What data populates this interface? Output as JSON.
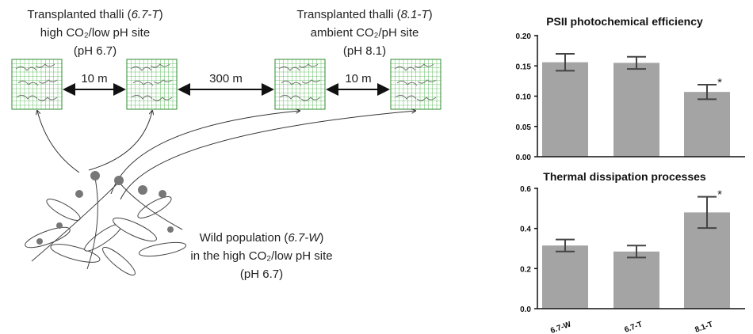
{
  "diagram": {
    "sites": [
      {
        "lines": [
          [
            "Transplanted thalli (",
            "6.7-T",
            ")"
          ],
          [
            "high CO₂/low pH site"
          ],
          [
            "(pH 6.7)"
          ]
        ]
      },
      {
        "lines": [
          [
            "Transplanted thalli (",
            "8.1-T",
            ")"
          ],
          [
            "ambient CO₂/pH site"
          ],
          [
            "(pH 8.1)"
          ]
        ]
      }
    ],
    "distances": [
      "10 m",
      "300 m",
      "10 m"
    ],
    "wild": {
      "lines": [
        [
          "Wild population (",
          "6.7-W",
          ")"
        ],
        [
          "in the high CO₂/low pH site"
        ],
        [
          "(pH 6.7)"
        ]
      ]
    }
  },
  "chart_data": [
    {
      "type": "bar",
      "title": "PSII photochemical efficiency",
      "categories": [
        null,
        null,
        null
      ],
      "values": [
        0.156,
        0.155,
        0.107
      ],
      "errors": [
        0.014,
        0.01,
        0.012
      ],
      "color": "#a4a4a4",
      "ylim": [
        0,
        0.2
      ],
      "yticks": [
        {
          "value": 0,
          "label": "0.00"
        },
        {
          "value": 0.05,
          "label": "0.05"
        },
        {
          "value": 0.1,
          "label": "0.10"
        },
        {
          "value": 0.15,
          "label": "0.15"
        },
        {
          "value": 0.2,
          "label": "0.20"
        }
      ],
      "annotations": [
        {
          "text": "*",
          "index": 2
        }
      ]
    },
    {
      "type": "bar",
      "title": "Thermal dissipation processes",
      "categories": [
        "6.7-W",
        "6.7-T",
        "8.1-T"
      ],
      "values": [
        0.315,
        0.285,
        0.48
      ],
      "errors": [
        0.03,
        0.03,
        0.078
      ],
      "color": "#a4a4a4",
      "ylim": [
        0,
        0.6
      ],
      "yticks": [
        {
          "value": 0,
          "label": "0.0"
        },
        {
          "value": 0.2,
          "label": "0.2"
        },
        {
          "value": 0.4,
          "label": "0.4"
        },
        {
          "value": 0.6,
          "label": "0.6"
        }
      ],
      "annotations": [
        {
          "text": "*",
          "index": 2
        }
      ]
    }
  ]
}
